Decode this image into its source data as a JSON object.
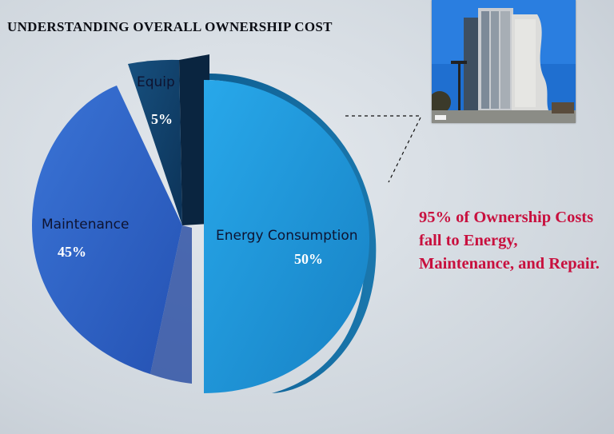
{
  "title": "UNDERSTANDING OVERALL OWNERSHIP COST",
  "callout": "95% of Ownership Costs fall to Energy, Maintenance, and Repair.",
  "colors": {
    "energy": "#1b8fd3",
    "maintenance": "#2d63c9",
    "equip": "#123f73",
    "callout_text": "#c8103e"
  },
  "chart_data": {
    "type": "pie",
    "title": "UNDERSTANDING OVERALL OWNERSHIP COST",
    "slices": [
      {
        "label": "Energy Consumption",
        "value": 50,
        "value_label": "50%",
        "color": "#1b8fd3",
        "exploded": true
      },
      {
        "label": "Maintenance",
        "value": 45,
        "value_label": "45%",
        "color": "#2d63c9",
        "exploded": false
      },
      {
        "label": "Equip",
        "value": 5,
        "value_label": "5%",
        "color": "#123f73",
        "exploded": true
      }
    ]
  }
}
